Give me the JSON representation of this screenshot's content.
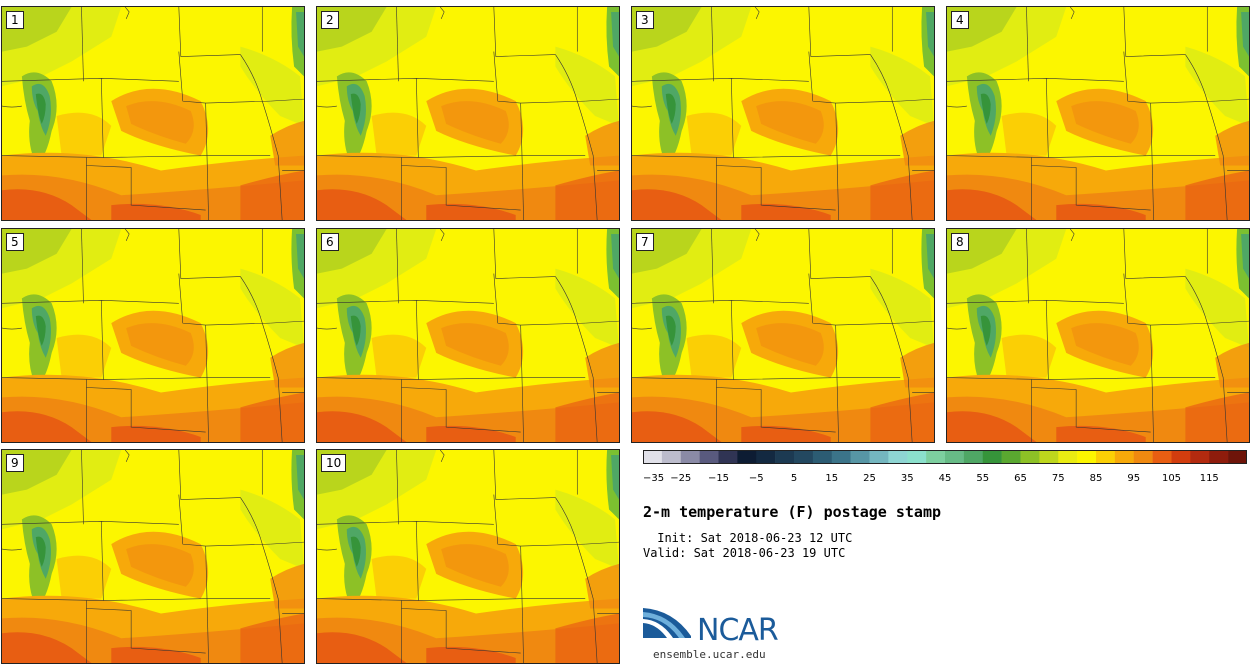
{
  "title": "2-m temperature (F) postage stamp",
  "init": " Init: Sat 2018-06-23 12 UTC",
  "valid": "Valid: Sat 2018-06-23 19 UTC",
  "logo": {
    "text": "NCAR",
    "url": "ensemble.ucar.edu"
  },
  "members": [
    "1",
    "2",
    "3",
    "4",
    "5",
    "6",
    "7",
    "8",
    "9",
    "10"
  ],
  "colorbar": {
    "tick_labels": [
      "-35",
      "-25",
      "-15",
      "-5",
      "5",
      "15",
      "25",
      "35",
      "45",
      "55",
      "65",
      "75",
      "85",
      "95",
      "105",
      "115"
    ],
    "colors": [
      "#e1e1e9",
      "#bcbccc",
      "#8a8aa6",
      "#595a7e",
      "#303454",
      "#0d1c33",
      "#132941",
      "#1c3a52",
      "#234860",
      "#2c5c73",
      "#3b7489",
      "#5796a5",
      "#74b6bf",
      "#8ed5d3",
      "#8be0cc",
      "#7dcf9f",
      "#67bb86",
      "#4fa765",
      "#36943a",
      "#5aa830",
      "#8dc126",
      "#bed71d",
      "#eaec12",
      "#fcf600",
      "#fbcf05",
      "#f7a90a",
      "#f08910",
      "#e85e12",
      "#d23d0e",
      "#b32a0f",
      "#8e1c0c",
      "#6e1409"
    ]
  }
}
